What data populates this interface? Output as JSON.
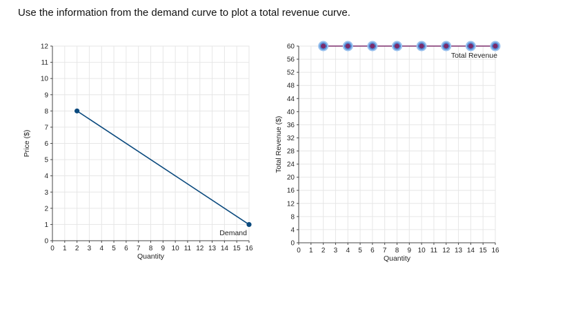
{
  "instruction": "Use the information from the demand curve to plot a total revenue curve.",
  "chart_data": [
    {
      "type": "line",
      "xlabel": "Quantity",
      "ylabel": "Price ($)",
      "xlim": [
        0,
        16
      ],
      "ylim": [
        0,
        12
      ],
      "xticks": [
        0,
        1,
        2,
        3,
        4,
        5,
        6,
        7,
        8,
        9,
        10,
        11,
        12,
        13,
        14,
        15,
        16
      ],
      "yticks": [
        0,
        1,
        2,
        3,
        4,
        5,
        6,
        7,
        8,
        9,
        10,
        11,
        12
      ],
      "grid": true,
      "series": [
        {
          "name": "Demand",
          "color": "#0b4a7e",
          "x": [
            2,
            16
          ],
          "y": [
            8,
            1
          ]
        }
      ]
    },
    {
      "type": "line",
      "xlabel": "Quantity",
      "ylabel": "Total Revenue ($)",
      "xlim": [
        0,
        16
      ],
      "ylim": [
        0,
        60
      ],
      "xticks": [
        0,
        1,
        2,
        3,
        4,
        5,
        6,
        7,
        8,
        9,
        10,
        11,
        12,
        13,
        14,
        15,
        16
      ],
      "yticks": [
        0,
        4,
        8,
        12,
        16,
        20,
        24,
        28,
        32,
        36,
        40,
        44,
        48,
        52,
        56,
        60
      ],
      "grid": true,
      "series": [
        {
          "name": "Total Revenue",
          "color": "#7a2a6a",
          "marker_color": "#3b7bd0",
          "x": [
            2,
            4,
            6,
            8,
            10,
            12,
            14,
            16
          ],
          "y": [
            60,
            60,
            60,
            60,
            60,
            60,
            60,
            60
          ]
        }
      ]
    }
  ]
}
